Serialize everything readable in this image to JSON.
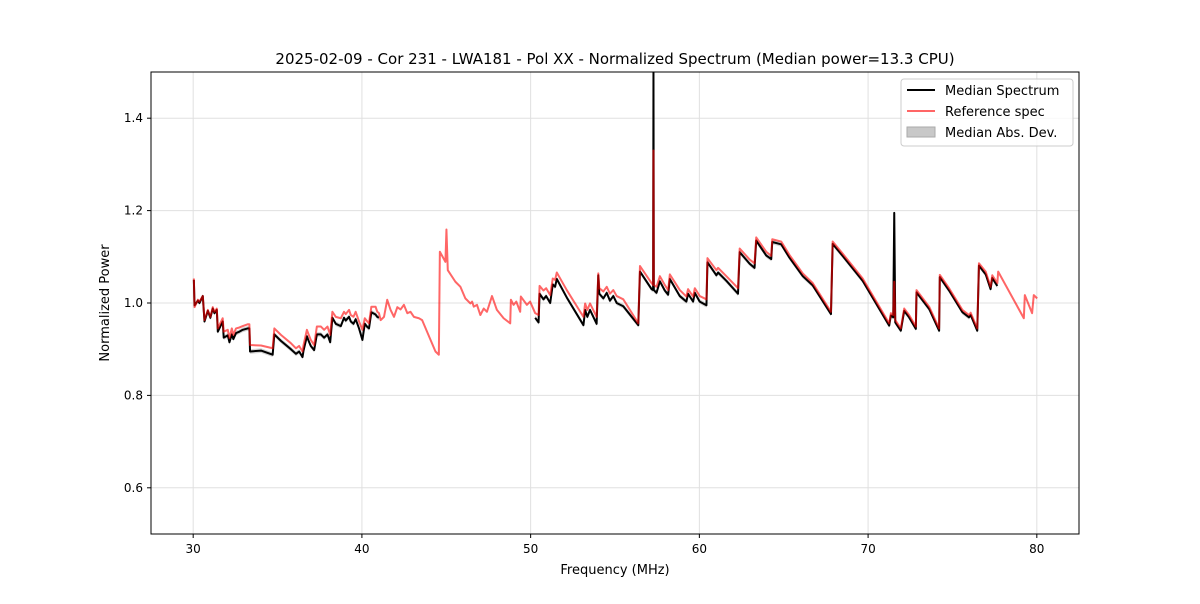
{
  "chart_data": {
    "type": "line",
    "title": "2025-02-09 - Cor 231 - LWA181 - Pol XX - Normalized Spectrum (Median power=13.3 CPU)",
    "xlabel": "Frequency (MHz)",
    "ylabel": "Normalized Power",
    "xlim": [
      27.5,
      82.5
    ],
    "ylim": [
      0.5,
      1.5
    ],
    "xticks": [
      30,
      40,
      50,
      60,
      70,
      80
    ],
    "yticks": [
      0.6,
      0.8,
      1.0,
      1.2,
      1.4
    ],
    "xtick_labels": [
      "30",
      "40",
      "50",
      "60",
      "70",
      "80"
    ],
    "ytick_labels": [
      "0.6",
      "0.8",
      "1.0",
      "1.2",
      "1.4"
    ],
    "grid": true,
    "legend_position": "top-right",
    "legend": [
      "Median Spectrum",
      "Reference spec",
      "Median Abs. Dev."
    ],
    "colors": {
      "median": "#000000",
      "reference": "#ff0000",
      "mad": "#c8c8c8"
    },
    "series": [
      {
        "name": "Median Spectrum",
        "x": [
          30.04,
          30.08,
          30.28,
          30.37,
          30.57,
          30.67,
          30.87,
          31.02,
          31.16,
          31.26,
          31.4,
          31.46,
          31.75,
          31.81,
          32.05,
          32.15,
          32.29,
          32.38,
          32.54,
          32.74,
          32.94,
          33.23,
          33.33,
          33.37,
          34.02,
          34.71,
          34.81,
          35.2,
          35.79,
          36.09,
          36.28,
          36.48,
          36.54,
          36.74,
          36.82,
          36.97,
          37.17,
          37.33,
          37.57,
          37.76,
          37.96,
          38.12,
          38.25,
          38.45,
          38.75,
          38.94,
          39.04,
          39.24,
          39.34,
          39.5,
          39.63,
          39.83,
          40.03,
          40.17,
          40.32,
          40.42,
          40.56,
          40.81,
          40.91,
          41.01,
          null,
          50.27,
          50.47,
          50.53,
          50.76,
          50.92,
          51.16,
          51.31,
          51.45,
          51.55,
          52.14,
          53.13,
          53.23,
          53.36,
          53.52,
          53.91,
          54.01,
          54.07,
          54.31,
          54.51,
          54.7,
          54.9,
          55.1,
          55.49,
          56.38,
          56.48,
          57.17,
          57.26,
          57.28,
          57.3,
          57.46,
          57.66,
          57.95,
          58.15,
          58.25,
          58.84,
          59.23,
          59.33,
          59.63,
          59.73,
          60.02,
          60.42,
          60.48,
          61.01,
          61.11,
          61.6,
          62.29,
          62.39,
          62.98,
          63.27,
          63.37,
          63.96,
          64.26,
          64.32,
          64.85,
          65.34,
          66.13,
          66.72,
          67.8,
          67.9,
          68.49,
          69.68,
          71.25,
          71.35,
          71.49,
          71.55,
          71.61,
          71.94,
          72.14,
          72.43,
          72.83,
          72.87,
          73.62,
          74.21,
          74.25,
          74.8,
          75.59,
          75.98,
          76.08,
          76.47,
          76.57,
          76.97,
          77.26,
          77.36,
          77.66
        ],
        "y": [
          1.05,
          0.995,
          1.005,
          1.0,
          1.015,
          0.96,
          0.983,
          0.968,
          0.988,
          0.978,
          0.985,
          0.938,
          0.96,
          0.925,
          0.93,
          0.915,
          0.932,
          0.922,
          0.935,
          0.938,
          0.942,
          0.945,
          0.945,
          0.895,
          0.897,
          0.888,
          0.932,
          0.918,
          0.9,
          0.89,
          0.895,
          0.883,
          0.897,
          0.928,
          0.92,
          0.907,
          0.898,
          0.932,
          0.932,
          0.925,
          0.932,
          0.915,
          0.968,
          0.955,
          0.95,
          0.968,
          0.962,
          0.97,
          0.96,
          0.955,
          0.965,
          0.945,
          0.92,
          0.955,
          0.948,
          0.945,
          0.98,
          0.975,
          0.97,
          0.968,
          null,
          0.968,
          0.958,
          1.02,
          1.008,
          1.015,
          1.0,
          1.04,
          1.035,
          1.052,
          1.012,
          0.952,
          0.985,
          0.97,
          0.985,
          0.955,
          1.06,
          1.02,
          1.01,
          1.022,
          1.005,
          1.015,
          1.0,
          0.993,
          0.952,
          1.068,
          1.03,
          1.028,
          1.5,
          1.028,
          1.022,
          1.047,
          1.027,
          1.018,
          1.052,
          1.015,
          1.003,
          1.02,
          1.003,
          1.022,
          1.003,
          0.995,
          1.088,
          1.06,
          1.066,
          1.048,
          1.02,
          1.11,
          1.085,
          1.076,
          1.135,
          1.103,
          1.095,
          1.132,
          1.127,
          1.098,
          1.058,
          1.038,
          0.976,
          1.128,
          1.102,
          1.048,
          0.951,
          0.973,
          0.969,
          1.195,
          0.958,
          0.94,
          0.983,
          0.969,
          0.944,
          1.023,
          0.987,
          0.94,
          1.056,
          1.027,
          0.98,
          0.969,
          0.974,
          0.94,
          1.081,
          1.062,
          1.03,
          1.054,
          1.037
        ]
      },
      {
        "name": "Reference spec",
        "x": [
          30.04,
          30.08,
          30.28,
          30.37,
          30.57,
          30.67,
          30.87,
          31.02,
          31.16,
          31.26,
          31.4,
          31.46,
          31.75,
          31.81,
          32.05,
          32.15,
          32.29,
          32.38,
          32.54,
          32.74,
          32.94,
          33.23,
          33.33,
          33.37,
          34.02,
          34.71,
          34.81,
          35.2,
          35.79,
          36.09,
          36.28,
          36.48,
          36.54,
          36.74,
          36.82,
          36.97,
          37.17,
          37.33,
          37.57,
          37.76,
          37.96,
          38.12,
          38.25,
          38.45,
          38.75,
          38.94,
          39.04,
          39.24,
          39.34,
          39.5,
          39.63,
          39.83,
          40.03,
          40.17,
          40.32,
          40.42,
          40.56,
          40.81,
          40.91,
          41.01,
          41.11,
          41.31,
          41.5,
          41.7,
          41.9,
          42.1,
          42.29,
          42.49,
          42.69,
          42.88,
          43.08,
          43.38,
          43.57,
          44.07,
          44.36,
          44.56,
          44.62,
          44.95,
          45.01,
          45.09,
          45.54,
          45.84,
          46.13,
          46.43,
          46.53,
          46.63,
          46.82,
          47.02,
          47.22,
          47.41,
          47.71,
          48.0,
          48.4,
          48.79,
          48.83,
          48.99,
          49.15,
          49.38,
          49.42,
          49.78,
          49.97,
          50.27,
          50.47,
          50.53,
          50.76,
          50.92,
          51.16,
          51.31,
          51.45,
          51.55,
          52.14,
          53.13,
          53.23,
          53.36,
          53.52,
          53.91,
          54.01,
          54.07,
          54.31,
          54.51,
          54.7,
          54.9,
          55.1,
          55.49,
          56.38,
          56.48,
          57.17,
          57.26,
          57.28,
          57.3,
          57.46,
          57.66,
          57.95,
          58.15,
          58.25,
          58.84,
          59.23,
          59.33,
          59.63,
          59.73,
          60.02,
          60.42,
          60.48,
          61.01,
          61.11,
          61.6,
          62.29,
          62.39,
          62.98,
          63.27,
          63.37,
          63.96,
          64.26,
          64.32,
          64.85,
          65.34,
          66.13,
          66.72,
          67.8,
          67.9,
          68.49,
          69.68,
          71.25,
          71.35,
          71.49,
          71.55,
          71.61,
          71.94,
          72.14,
          72.43,
          72.83,
          72.87,
          73.62,
          74.21,
          74.25,
          74.8,
          75.59,
          75.98,
          76.08,
          76.47,
          76.57,
          76.97,
          77.26,
          77.36,
          77.66,
          77.71,
          79.23,
          79.29,
          79.72,
          79.82,
          80.02
        ],
        "y": [
          1.053,
          0.991,
          1.007,
          1.003,
          1.015,
          0.963,
          0.985,
          0.97,
          0.991,
          0.981,
          0.988,
          0.945,
          0.967,
          0.938,
          0.942,
          0.924,
          0.945,
          0.931,
          0.945,
          0.947,
          0.95,
          0.954,
          0.954,
          0.909,
          0.908,
          0.902,
          0.945,
          0.931,
          0.913,
          0.902,
          0.907,
          0.895,
          0.909,
          0.942,
          0.934,
          0.92,
          0.909,
          0.949,
          0.949,
          0.942,
          0.949,
          0.931,
          0.981,
          0.97,
          0.967,
          0.981,
          0.976,
          0.985,
          0.974,
          0.97,
          0.981,
          0.96,
          0.942,
          0.967,
          0.96,
          0.956,
          0.992,
          0.992,
          0.981,
          0.978,
          0.963,
          0.97,
          1.007,
          0.985,
          0.97,
          0.991,
          0.986,
          0.996,
          0.978,
          0.981,
          0.97,
          0.967,
          0.963,
          0.92,
          0.895,
          0.888,
          1.111,
          1.089,
          1.159,
          1.071,
          1.046,
          1.035,
          1.01,
          0.999,
          1.003,
          0.992,
          0.996,
          0.974,
          0.988,
          0.981,
          1.015,
          0.985,
          0.967,
          0.956,
          1.007,
          0.996,
          1.003,
          0.981,
          1.014,
          0.996,
          1.003,
          0.978,
          0.974,
          1.037,
          1.027,
          1.032,
          1.017,
          1.053,
          1.05,
          1.066,
          1.028,
          0.97,
          0.999,
          0.985,
          0.999,
          0.97,
          1.064,
          1.032,
          1.025,
          1.035,
          1.02,
          1.028,
          1.015,
          1.008,
          0.956,
          1.08,
          1.043,
          1.039,
          1.33,
          1.039,
          1.035,
          1.058,
          1.039,
          1.028,
          1.062,
          1.028,
          1.014,
          1.03,
          1.014,
          1.032,
          1.015,
          1.008,
          1.097,
          1.071,
          1.076,
          1.058,
          1.032,
          1.118,
          1.094,
          1.086,
          1.142,
          1.111,
          1.102,
          1.138,
          1.133,
          1.104,
          1.064,
          1.043,
          0.981,
          1.133,
          1.107,
          1.053,
          0.956,
          0.978,
          0.974,
          1.046,
          0.963,
          0.945,
          0.988,
          0.974,
          0.949,
          1.028,
          0.992,
          0.945,
          1.061,
          1.032,
          0.985,
          0.974,
          0.979,
          0.945,
          1.086,
          1.068,
          1.035,
          1.06,
          1.043,
          1.068,
          0.967,
          1.017,
          0.978,
          1.017,
          1.01
        ]
      }
    ],
    "mad_halfwidth": 0.005
  }
}
